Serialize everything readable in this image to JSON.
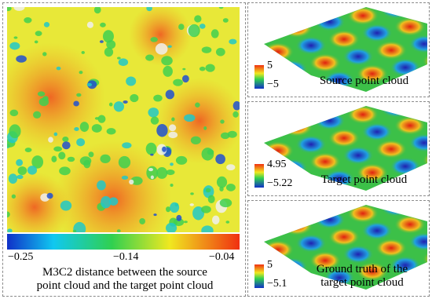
{
  "main_panel": {
    "colorbar_labels": [
      "−0.25",
      "−0.14",
      "−0.04"
    ],
    "caption": "M3C2 distance between the source point cloud and the target point cloud"
  },
  "panels": [
    {
      "colorbar_max": "5",
      "colorbar_min": "−5",
      "caption": "Source point cloud"
    },
    {
      "colorbar_max": "4.95",
      "colorbar_min": "−5.22",
      "caption": "Target point cloud"
    },
    {
      "colorbar_max": "5",
      "colorbar_min": "−5.1",
      "caption": "Ground truth of the target point cloud"
    }
  ]
}
